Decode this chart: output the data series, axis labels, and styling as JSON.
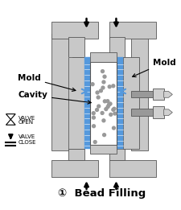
{
  "title": "①  Bead Filling",
  "title_fontsize": 9.5,
  "background_color": "#ffffff",
  "mold_color": "#c8c8c8",
  "mold_edge": "#555555",
  "blue_color": "#5599dd",
  "cavity_color": "#ffffff",
  "nozzle_color": "#999999",
  "nozzle_tip_color": "#dddddd",
  "arrow_color": "#000000",
  "label_mold_left": "Mold",
  "label_mold_right": "Mold",
  "label_cavity": "Cavity",
  "label_valve_open": "VALVE\nOPEN",
  "label_valve_close": "VALVE\nCLOSE",
  "fig_width": 2.25,
  "fig_height": 2.61,
  "dpi": 100
}
